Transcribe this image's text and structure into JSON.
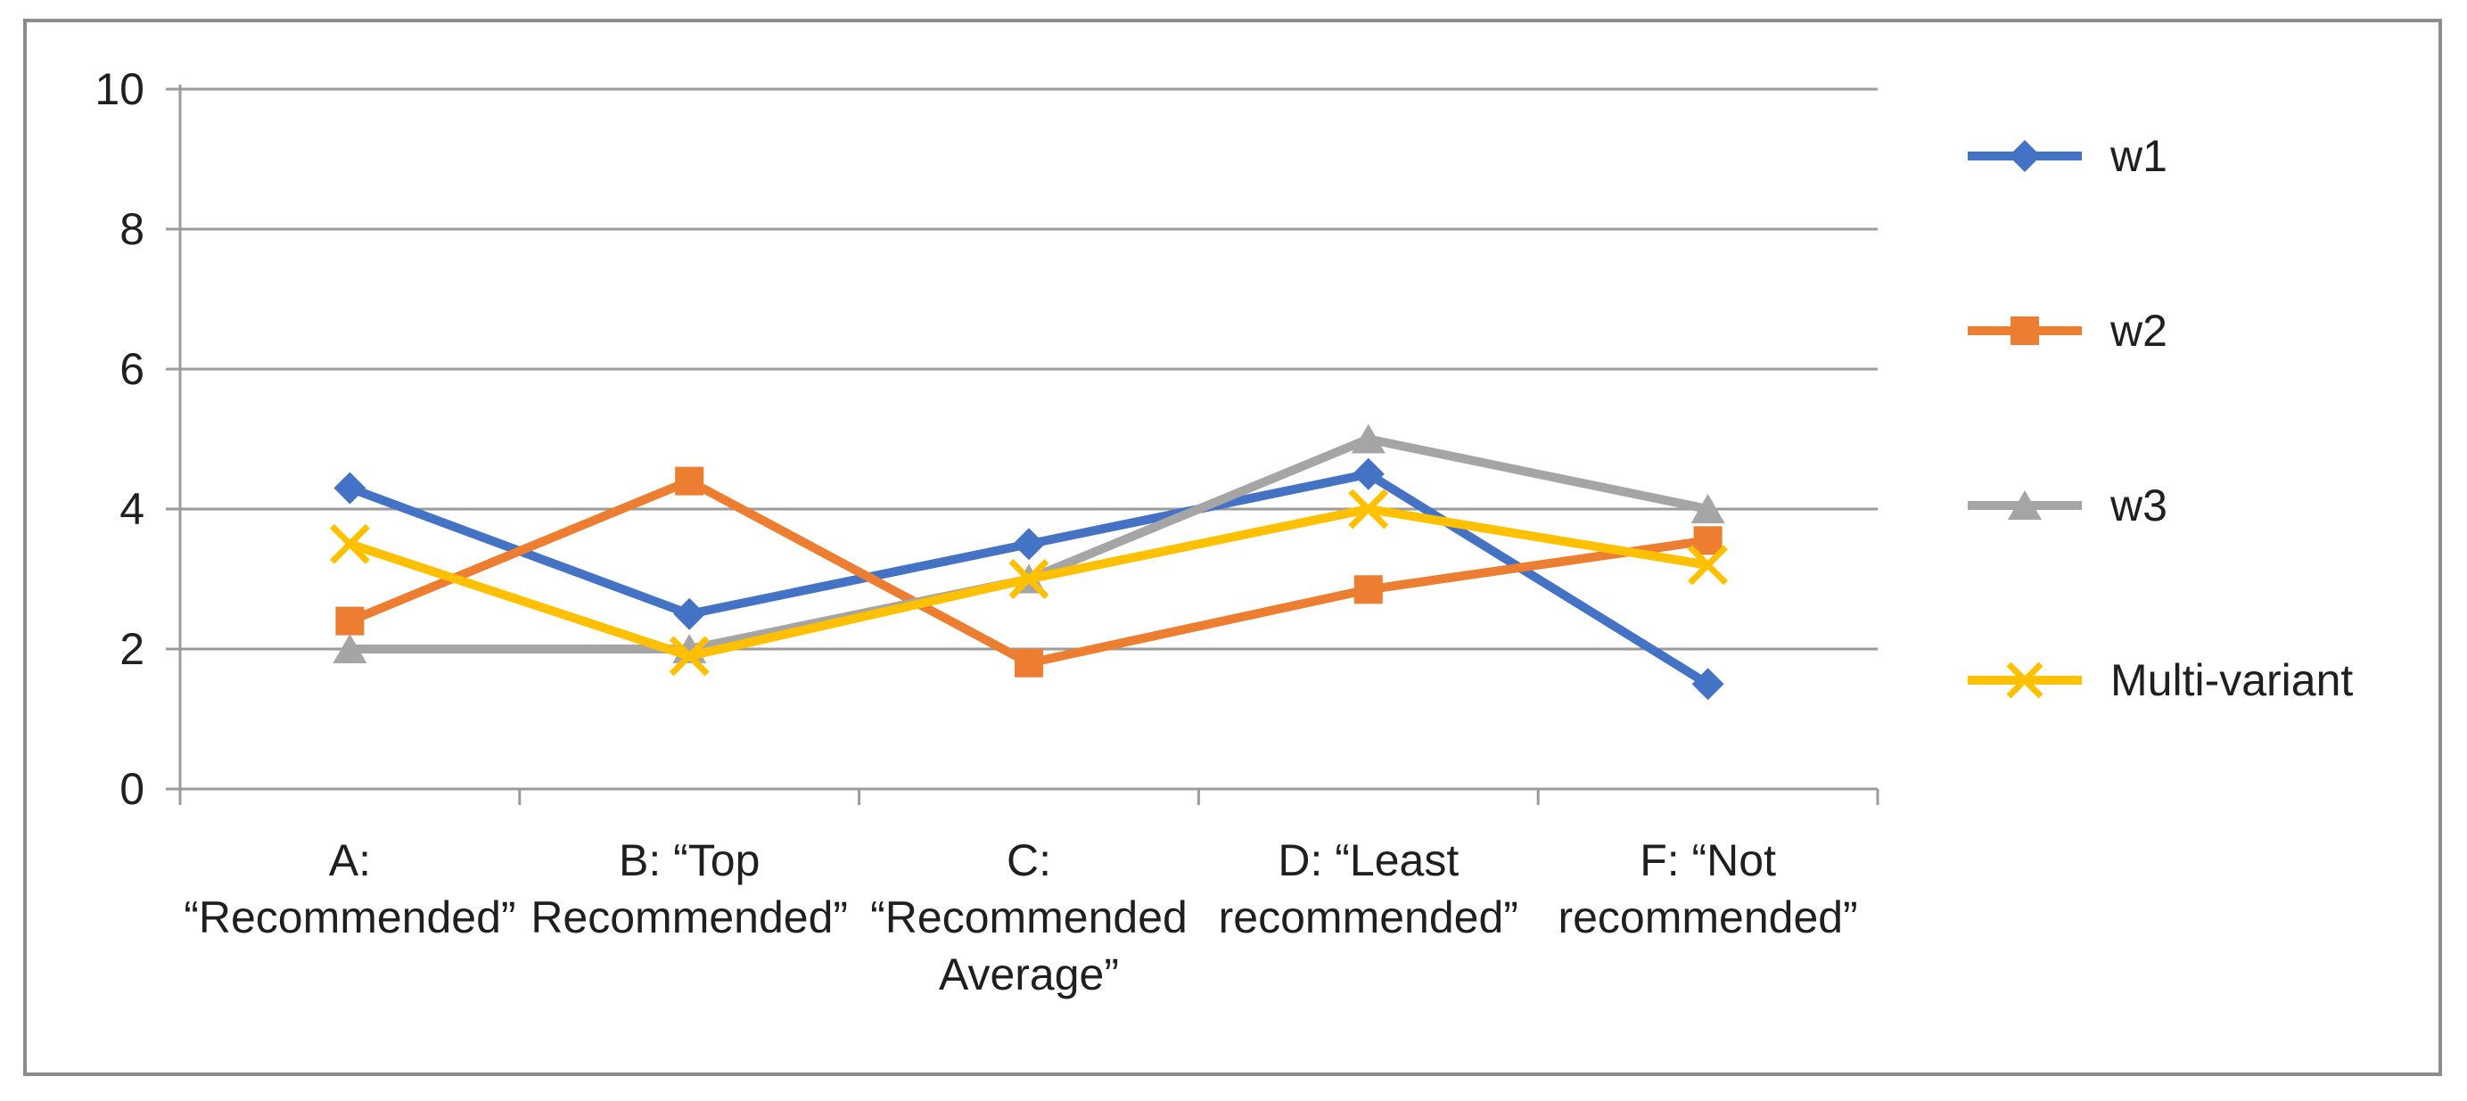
{
  "chart_data": {
    "type": "line",
    "title": "",
    "categories": [
      "A: “Recommended”",
      "B: “Top Recommended”",
      "C: “Recommended Average”",
      "D: “Least recommended”",
      "F: “Not recommended”"
    ],
    "categories_lines": [
      [
        "A:",
        "“Recommended”"
      ],
      [
        "B: “Top",
        "Recommended”"
      ],
      [
        "C: “Recommended",
        "Average”"
      ],
      [
        "D: “Least",
        "recommended”"
      ],
      [
        "F: “Not",
        "recommended”"
      ]
    ],
    "y_ticks": [
      "0",
      "2",
      "4",
      "6",
      "8",
      "10"
    ],
    "ylim": [
      0,
      10
    ],
    "y_tick_step": 2,
    "grid": true,
    "legend_position": "right",
    "series": [
      {
        "name": "w1",
        "marker": "diamond",
        "color": "#4472C4",
        "values": [
          4.3,
          2.5,
          3.5,
          4.5,
          1.5
        ]
      },
      {
        "name": "w2",
        "marker": "square",
        "color": "#ED7D31",
        "values": [
          2.4,
          4.4,
          1.8,
          2.85,
          3.55
        ]
      },
      {
        "name": "w3",
        "marker": "triangle",
        "color": "#A5A5A5",
        "values": [
          2.0,
          2.0,
          3.0,
          5.0,
          4.0
        ]
      },
      {
        "name": "Multi-variant",
        "marker": "x",
        "color": "#FFC000",
        "values": [
          3.5,
          1.9,
          3.0,
          4.0,
          3.2
        ]
      }
    ],
    "colors": {
      "axis": "#9b9b9b",
      "text": "#1f1f1f",
      "frame_border": "#8c8c8c",
      "background": "#ffffff"
    }
  }
}
